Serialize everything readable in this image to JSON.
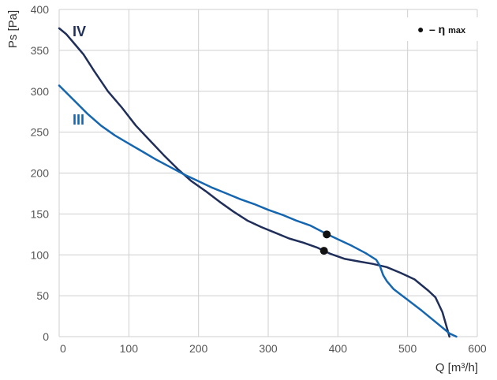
{
  "chart_data": {
    "type": "line",
    "xlabel": "Q [m³/h]",
    "ylabel": "Ps [Pa]",
    "xlim": [
      0,
      600
    ],
    "ylim": [
      0,
      400
    ],
    "x_ticks": [
      "0",
      "100",
      "200",
      "300",
      "400",
      "500",
      "600"
    ],
    "y_ticks": [
      "0",
      "50",
      "100",
      "150",
      "200",
      "250",
      "300",
      "350",
      "400"
    ],
    "grid": true,
    "legend_position": "top-right",
    "legend": {
      "marker": "●",
      "text": "– η",
      "subscript": "max"
    },
    "series": [
      {
        "name": "IV",
        "color": "#1f2f5a",
        "x": [
          0,
          10,
          20,
          35,
          50,
          70,
          90,
          110,
          130,
          150,
          170,
          190,
          210,
          230,
          250,
          270,
          290,
          310,
          330,
          350,
          370,
          380,
          390,
          410,
          430,
          450,
          470,
          490,
          500,
          510,
          520,
          530,
          540,
          550,
          560
        ],
        "y": [
          377,
          370,
          360,
          345,
          325,
          300,
          280,
          258,
          240,
          222,
          205,
          190,
          178,
          165,
          153,
          142,
          134,
          127,
          120,
          115,
          109,
          105,
          101,
          95,
          92,
          89,
          85,
          78,
          74,
          70,
          63,
          56,
          48,
          30,
          0
        ]
      },
      {
        "name": "III",
        "color": "#1566b0",
        "x": [
          0,
          20,
          40,
          60,
          80,
          100,
          120,
          140,
          160,
          180,
          200,
          220,
          240,
          260,
          280,
          300,
          320,
          340,
          360,
          385,
          400,
          420,
          440,
          455,
          460,
          465,
          470,
          480,
          500,
          520,
          540,
          560,
          570
        ],
        "y": [
          307,
          290,
          273,
          258,
          246,
          236,
          226,
          216,
          207,
          198,
          190,
          182,
          175,
          168,
          162,
          155,
          149,
          142,
          136,
          125,
          119,
          111,
          102,
          94,
          87,
          75,
          68,
          58,
          45,
          32,
          18,
          4,
          0
        ]
      }
    ],
    "eta_max_points": [
      {
        "series": "IV",
        "x": 380,
        "y": 105
      },
      {
        "series": "III",
        "x": 384,
        "y": 125
      }
    ]
  }
}
